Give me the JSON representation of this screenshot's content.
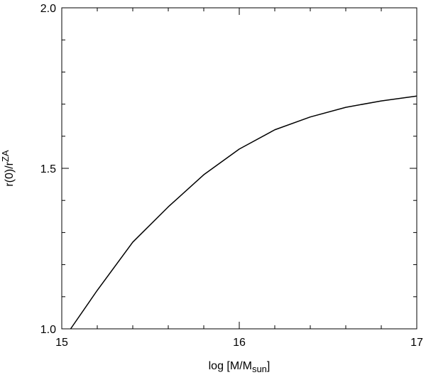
{
  "chart_data": {
    "type": "line",
    "x_label": {
      "main": "log [M/M",
      "sub": "sun",
      "end": "]"
    },
    "y_label": {
      "main": "r(0)/r",
      "sup": "ZA"
    },
    "x": [
      15.05,
      15.2,
      15.4,
      15.6,
      15.8,
      16.0,
      16.2,
      16.4,
      16.6,
      16.8,
      17.0
    ],
    "series": [
      {
        "color": "#000000",
        "values": [
          1.0,
          1.12,
          1.27,
          1.38,
          1.48,
          1.56,
          1.62,
          1.66,
          1.69,
          1.71,
          1.725
        ]
      }
    ],
    "xlim": [
      15,
      17
    ],
    "xticks": [
      15,
      16,
      17
    ],
    "xminor": [
      15.2,
      15.4,
      15.6,
      15.8,
      16.2,
      16.4,
      16.6,
      16.8
    ],
    "ylim": [
      1,
      2
    ],
    "yticks": [
      {
        "value": 1,
        "label": "1.0"
      },
      1.5,
      {
        "value": 2,
        "label": "2.0"
      }
    ],
    "yminor": [
      1.1,
      1.2,
      1.3,
      1.4,
      1.6,
      1.7,
      1.8,
      1.9
    ]
  }
}
